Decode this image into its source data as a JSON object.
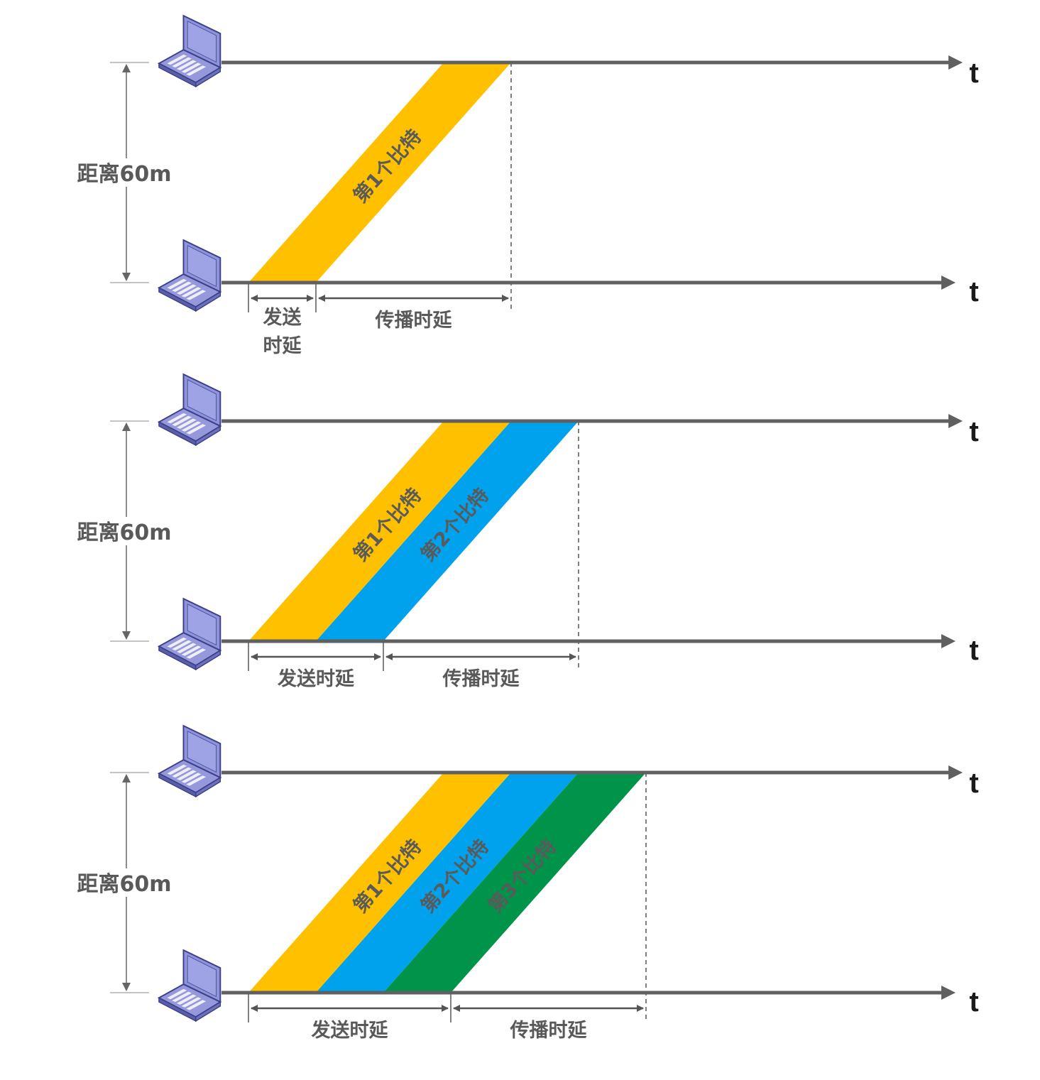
{
  "time_axis_label": "t",
  "colors": {
    "axis": "#606060",
    "bit_1": "#FFC000",
    "bit_2": "#00A2ED",
    "bit_3": "#00944A",
    "laptop": "#8F93D9"
  },
  "icons": {
    "host": "laptop-icon"
  },
  "panels": [
    {
      "distance_label": "距离60m",
      "bits": [
        {
          "label": "第1个比特",
          "color": "#FFC000"
        }
      ],
      "transmission_delay_label": "发送时延",
      "transmission_delay_wrapped": [
        "发送",
        "时延"
      ],
      "propagation_delay_label": "传播时延"
    },
    {
      "distance_label": "距离60m",
      "bits": [
        {
          "label": "第1个比特",
          "color": "#FFC000"
        },
        {
          "label": "第2个比特",
          "color": "#00A2ED"
        }
      ],
      "transmission_delay_label": "发送时延",
      "propagation_delay_label": "传播时延"
    },
    {
      "distance_label": "距离60m",
      "bits": [
        {
          "label": "第1个比特",
          "color": "#FFC000"
        },
        {
          "label": "第2个比特",
          "color": "#00A2ED"
        },
        {
          "label": "第3个比特",
          "color": "#00944A"
        }
      ],
      "transmission_delay_label": "发送时延",
      "propagation_delay_label": "传播时延"
    }
  ]
}
